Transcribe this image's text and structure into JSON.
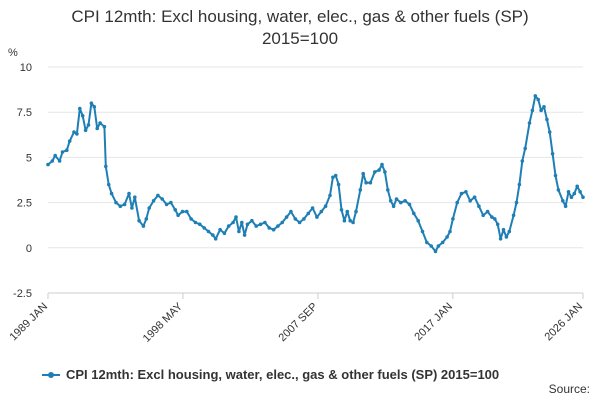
{
  "colors": {
    "series": "#1f7fb5",
    "grid": "#e6e6e6",
    "axis": "#cccccc",
    "text": "#333333"
  },
  "legend_icon": "line-with-dot-marker",
  "footer": {
    "source_label": "Source:"
  },
  "chart_data": {
    "type": "line",
    "title": "CPI 12mth: Excl housing, water, elec., gas & other fuels (SP)",
    "subtitle": "2015=100",
    "ylabel": "%",
    "xlabel": "",
    "ylim": [
      -2.5,
      10
    ],
    "yticks": [
      {
        "value": -2.5,
        "label": "-2.5"
      },
      {
        "value": 0,
        "label": "0"
      },
      {
        "value": 2.5,
        "label": "2.5"
      },
      {
        "value": 5,
        "label": "5"
      },
      {
        "value": 7.5,
        "label": "7.5"
      },
      {
        "value": 10,
        "label": "10"
      }
    ],
    "xlim": [
      1989.0,
      2026.0
    ],
    "xticks": [
      {
        "value": 1989.0,
        "label": "1989 JAN"
      },
      {
        "value": 1998.33,
        "label": "1998 MAY"
      },
      {
        "value": 2007.67,
        "label": "2007 SEP"
      },
      {
        "value": 2017.0,
        "label": "2017 JAN"
      },
      {
        "value": 2026.0,
        "label": "2026 JAN"
      }
    ],
    "grid": true,
    "legend_position": "bottom",
    "series": [
      {
        "name": "CPI 12mth: Excl housing, water, elec., gas & other fuels (SP) 2015=100",
        "points": [
          [
            1989.0,
            4.6
          ],
          [
            1989.3,
            4.8
          ],
          [
            1989.5,
            5.1
          ],
          [
            1989.8,
            4.8
          ],
          [
            1990.0,
            5.3
          ],
          [
            1990.3,
            5.4
          ],
          [
            1990.5,
            5.9
          ],
          [
            1990.8,
            6.4
          ],
          [
            1991.0,
            6.3
          ],
          [
            1991.2,
            7.7
          ],
          [
            1991.4,
            7.3
          ],
          [
            1991.6,
            6.5
          ],
          [
            1991.8,
            6.8
          ],
          [
            1992.0,
            8.0
          ],
          [
            1992.2,
            7.8
          ],
          [
            1992.4,
            6.6
          ],
          [
            1992.6,
            6.9
          ],
          [
            1992.9,
            6.7
          ],
          [
            1993.0,
            4.5
          ],
          [
            1993.2,
            3.5
          ],
          [
            1993.4,
            3.0
          ],
          [
            1993.7,
            2.5
          ],
          [
            1994.0,
            2.3
          ],
          [
            1994.3,
            2.4
          ],
          [
            1994.6,
            3.0
          ],
          [
            1994.8,
            2.2
          ],
          [
            1995.0,
            2.8
          ],
          [
            1995.3,
            1.5
          ],
          [
            1995.6,
            1.2
          ],
          [
            1995.8,
            1.6
          ],
          [
            1996.0,
            2.2
          ],
          [
            1996.3,
            2.6
          ],
          [
            1996.6,
            2.9
          ],
          [
            1996.9,
            2.7
          ],
          [
            1997.2,
            2.4
          ],
          [
            1997.5,
            2.5
          ],
          [
            1997.8,
            2.1
          ],
          [
            1998.0,
            1.8
          ],
          [
            1998.3,
            2.0
          ],
          [
            1998.6,
            2.0
          ],
          [
            1998.9,
            1.6
          ],
          [
            1999.2,
            1.4
          ],
          [
            1999.5,
            1.3
          ],
          [
            1999.8,
            1.1
          ],
          [
            2000.1,
            0.9
          ],
          [
            2000.4,
            0.7
          ],
          [
            2000.6,
            0.5
          ],
          [
            2000.9,
            1.0
          ],
          [
            2001.2,
            0.8
          ],
          [
            2001.5,
            1.2
          ],
          [
            2001.8,
            1.4
          ],
          [
            2002.0,
            1.7
          ],
          [
            2002.2,
            0.9
          ],
          [
            2002.4,
            1.4
          ],
          [
            2002.6,
            0.7
          ],
          [
            2002.8,
            1.3
          ],
          [
            2003.1,
            1.5
          ],
          [
            2003.4,
            1.2
          ],
          [
            2003.7,
            1.3
          ],
          [
            2004.0,
            1.4
          ],
          [
            2004.3,
            1.1
          ],
          [
            2004.6,
            1.0
          ],
          [
            2004.9,
            1.2
          ],
          [
            2005.2,
            1.4
          ],
          [
            2005.5,
            1.7
          ],
          [
            2005.8,
            2.0
          ],
          [
            2006.1,
            1.6
          ],
          [
            2006.4,
            1.4
          ],
          [
            2006.7,
            1.6
          ],
          [
            2007.0,
            1.9
          ],
          [
            2007.3,
            2.2
          ],
          [
            2007.6,
            1.7
          ],
          [
            2007.9,
            2.0
          ],
          [
            2008.2,
            2.3
          ],
          [
            2008.5,
            2.9
          ],
          [
            2008.7,
            3.9
          ],
          [
            2008.9,
            4.0
          ],
          [
            2009.1,
            3.5
          ],
          [
            2009.3,
            2.1
          ],
          [
            2009.5,
            1.5
          ],
          [
            2009.7,
            2.0
          ],
          [
            2009.9,
            1.5
          ],
          [
            2010.1,
            1.4
          ],
          [
            2010.3,
            2.0
          ],
          [
            2010.6,
            3.2
          ],
          [
            2010.8,
            4.1
          ],
          [
            2011.0,
            3.6
          ],
          [
            2011.3,
            3.6
          ],
          [
            2011.6,
            4.2
          ],
          [
            2011.9,
            4.3
          ],
          [
            2012.1,
            4.6
          ],
          [
            2012.3,
            4.2
          ],
          [
            2012.5,
            3.2
          ],
          [
            2012.7,
            2.6
          ],
          [
            2012.9,
            2.3
          ],
          [
            2013.1,
            2.7
          ],
          [
            2013.4,
            2.5
          ],
          [
            2013.7,
            2.6
          ],
          [
            2014.0,
            2.4
          ],
          [
            2014.3,
            1.9
          ],
          [
            2014.6,
            1.5
          ],
          [
            2014.9,
            0.9
          ],
          [
            2015.2,
            0.3
          ],
          [
            2015.5,
            0.1
          ],
          [
            2015.8,
            -0.2
          ],
          [
            2016.0,
            0.1
          ],
          [
            2016.3,
            0.3
          ],
          [
            2016.6,
            0.6
          ],
          [
            2016.8,
            0.9
          ],
          [
            2017.0,
            1.6
          ],
          [
            2017.3,
            2.5
          ],
          [
            2017.6,
            3.0
          ],
          [
            2017.9,
            3.1
          ],
          [
            2018.2,
            2.6
          ],
          [
            2018.5,
            2.8
          ],
          [
            2018.8,
            2.3
          ],
          [
            2019.1,
            1.8
          ],
          [
            2019.4,
            2.0
          ],
          [
            2019.7,
            1.7
          ],
          [
            2019.9,
            1.6
          ],
          [
            2020.1,
            1.3
          ],
          [
            2020.3,
            0.5
          ],
          [
            2020.5,
            1.0
          ],
          [
            2020.7,
            0.6
          ],
          [
            2020.9,
            0.9
          ],
          [
            2021.2,
            1.8
          ],
          [
            2021.4,
            2.5
          ],
          [
            2021.6,
            3.5
          ],
          [
            2021.8,
            4.8
          ],
          [
            2022.0,
            5.5
          ],
          [
            2022.3,
            6.9
          ],
          [
            2022.5,
            7.6
          ],
          [
            2022.7,
            8.4
          ],
          [
            2022.9,
            8.2
          ],
          [
            2023.1,
            7.6
          ],
          [
            2023.3,
            7.8
          ],
          [
            2023.5,
            7.1
          ],
          [
            2023.7,
            6.4
          ],
          [
            2023.9,
            5.2
          ],
          [
            2024.1,
            4.0
          ],
          [
            2024.3,
            3.2
          ],
          [
            2024.6,
            2.6
          ],
          [
            2024.8,
            2.3
          ],
          [
            2025.0,
            3.1
          ],
          [
            2025.2,
            2.8
          ],
          [
            2025.4,
            3.0
          ],
          [
            2025.6,
            3.4
          ],
          [
            2025.8,
            3.1
          ],
          [
            2026.0,
            2.8
          ]
        ]
      }
    ]
  }
}
